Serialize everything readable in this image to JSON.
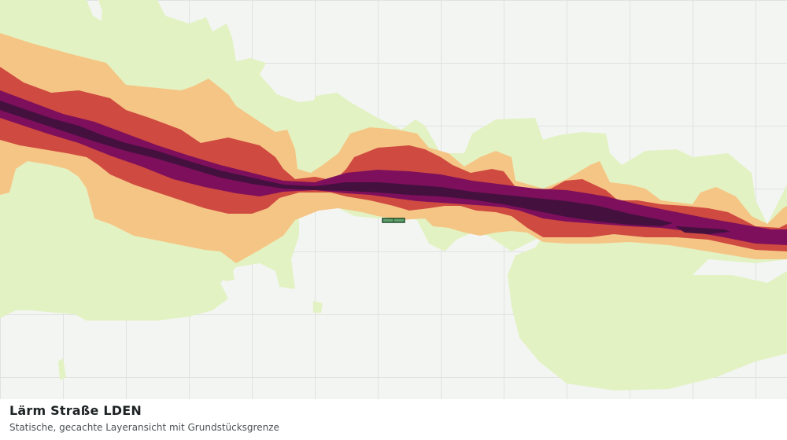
{
  "map": {
    "title": "Lärm Straße LDEN",
    "subtitle": "Statische, gecachte Layeransicht mit Grundstücksgrenze",
    "colors": {
      "background": "#f3f5f3",
      "grid": "#dfe3e0",
      "band_low": "#e3f2c2",
      "band_medium": "#f5c585",
      "band_high": "#cf4a40",
      "band_very_high": "#7d0f5c",
      "band_highest": "#44103e",
      "parcel_fill": "#5fa06c",
      "parcel_stroke": "#1f4d2a"
    }
  }
}
